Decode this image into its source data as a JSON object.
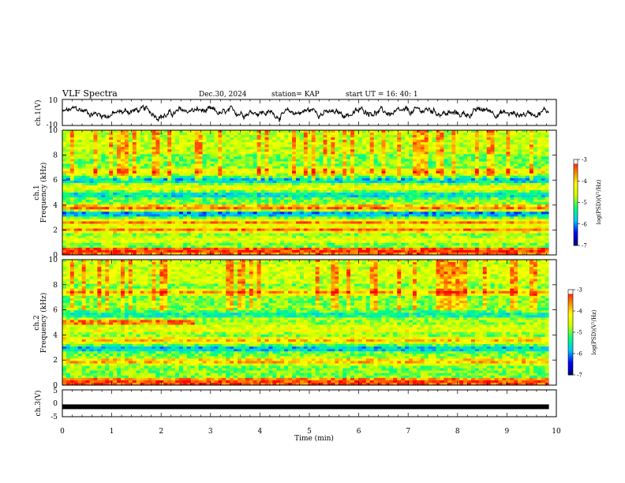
{
  "header": {
    "title": "VLF Spectra",
    "date": "Dec.30, 2024",
    "station": "station= KAP",
    "start_ut": "start  UT  =   16: 40: 1"
  },
  "colors": {
    "trace": "#000000",
    "colormap": [
      "#00007a",
      "#0000ff",
      "#00c8ff",
      "#00ff80",
      "#c8ff00",
      "#ffff00",
      "#ff8000",
      "#ff0000",
      "#ffffff"
    ]
  },
  "chart_data": [
    {
      "type": "line",
      "name": "ch1-waveform",
      "ylabel": "ch.1(V)",
      "ylim": [
        -10,
        10
      ],
      "yticks": [
        "10",
        "-10"
      ],
      "xlim": [
        0,
        10
      ],
      "note_values_approx": "noisy waveform fluctuating roughly between -5 and 5 V"
    },
    {
      "type": "heatmap",
      "name": "ch1-spectrogram",
      "ylabel": "ch.1\nFrequency (kHz)",
      "ylabel_top": "ch.1",
      "ylabel_bottom": "Frequency (kHz)",
      "ylim": [
        0,
        10
      ],
      "yticks": [
        "0",
        "2",
        "4",
        "6",
        "8",
        "10"
      ],
      "xlim": [
        0,
        9.85
      ],
      "colorbar": {
        "label": "log(PSD)(V²/Hz)",
        "range": [
          -7,
          -3
        ],
        "ticks": [
          "-3",
          "-4",
          "-5",
          "-6",
          "-7"
        ]
      },
      "bands_khz": [
        {
          "f": 0.3,
          "level": -3.2
        },
        {
          "f": 1.2,
          "level": -4.3
        },
        {
          "f": 2.0,
          "level": -3.5
        },
        {
          "f": 2.6,
          "level": -3.6
        },
        {
          "f": 3.3,
          "level": -6.2
        },
        {
          "f": 3.8,
          "level": -3.3
        },
        {
          "f": 4.8,
          "level": -5.8
        },
        {
          "f": 5.4,
          "level": -4.2
        },
        {
          "f": 6.0,
          "level": -6.0
        },
        {
          "f": 6.7,
          "level": -4.1
        },
        {
          "f": 7.6,
          "level": -5.0
        },
        {
          "f": 9.2,
          "level": -4.6
        }
      ]
    },
    {
      "type": "heatmap",
      "name": "ch2-spectrogram",
      "ylabel_top": "ch.2",
      "ylabel_bottom": "Frequency (kHz)",
      "ylim": [
        0,
        10
      ],
      "yticks": [
        "0",
        "2",
        "4",
        "6",
        "8",
        "10"
      ],
      "xlim": [
        0,
        9.85
      ],
      "colorbar": {
        "label": "log(PSD)(V²/Hz)",
        "range": [
          -7,
          -3
        ],
        "ticks": [
          "-3",
          "-4",
          "-5",
          "-6",
          "-7"
        ]
      },
      "bands_khz": [
        {
          "f": 0.2,
          "level": -3.2
        },
        {
          "f": 1.9,
          "level": -3.6
        },
        {
          "f": 2.9,
          "level": -6.0
        },
        {
          "f": 3.6,
          "level": -3.8
        },
        {
          "f": 4.4,
          "level": -4.2
        },
        {
          "f": 5.0,
          "level": -3.1
        },
        {
          "f": 5.6,
          "level": -5.6
        },
        {
          "f": 7.4,
          "level": -3.8
        },
        {
          "f": 9.0,
          "level": -4.4
        }
      ]
    },
    {
      "type": "line",
      "name": "ch3-waveform",
      "ylabel": "ch.3(V)",
      "ylim": [
        -5,
        5
      ],
      "yticks": [
        "5",
        "0",
        "-5"
      ],
      "xlim": [
        0,
        9.85
      ],
      "constant_value": -1.3
    }
  ],
  "xaxis": {
    "label": "Time  (min)",
    "range": [
      0,
      10
    ],
    "ticks": [
      "0",
      "1",
      "2",
      "3",
      "4",
      "5",
      "6",
      "7",
      "8",
      "9",
      "10"
    ]
  }
}
